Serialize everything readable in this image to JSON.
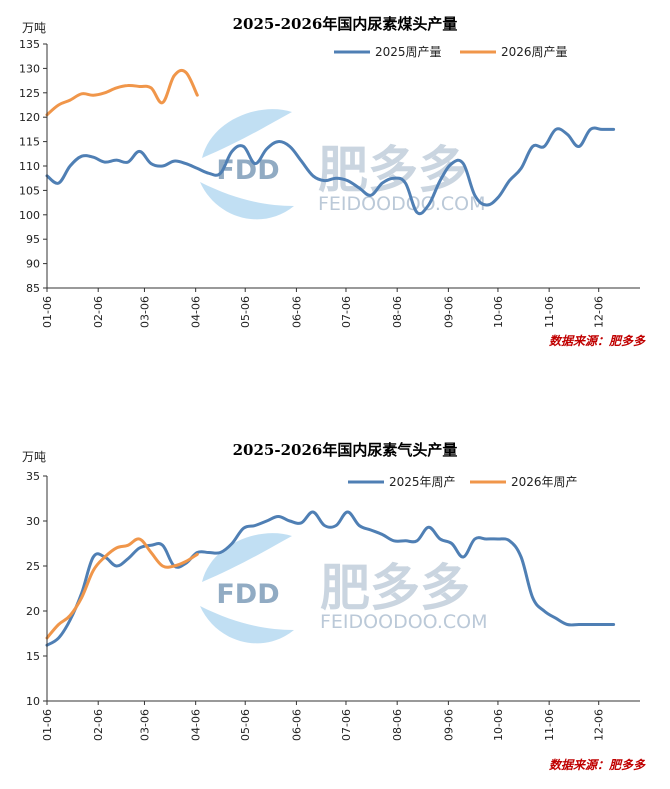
{
  "watermark": {
    "logo_text": "FDD",
    "brand_cn": "肥多多",
    "brand_en": "FEIDOODOO.COM",
    "colors": {
      "leaf": "#8ec5ea",
      "text": "#9fb3c8"
    }
  },
  "chart_data": [
    {
      "type": "line",
      "title": "2025-2026年国内尿素煤头产量",
      "unit": "万吨",
      "source": "数据来源：肥多多",
      "ylim": [
        85,
        135
      ],
      "yticks": [
        85,
        90,
        95,
        100,
        105,
        110,
        115,
        120,
        125,
        130,
        135
      ],
      "xlim": [
        0,
        359
      ],
      "xticks": [
        {
          "label": "01-06",
          "pos": 0
        },
        {
          "label": "02-06",
          "pos": 31
        },
        {
          "label": "03-06",
          "pos": 59
        },
        {
          "label": "04-06",
          "pos": 90
        },
        {
          "label": "05-06",
          "pos": 120
        },
        {
          "label": "06-06",
          "pos": 151
        },
        {
          "label": "07-06",
          "pos": 181
        },
        {
          "label": "08-06",
          "pos": 212
        },
        {
          "label": "09-06",
          "pos": 243
        },
        {
          "label": "10-06",
          "pos": 273
        },
        {
          "label": "11-06",
          "pos": 304
        },
        {
          "label": "12-06",
          "pos": 334
        }
      ],
      "legend_position": "top-right",
      "grid": false,
      "series": [
        {
          "name": "2025周产量",
          "color": "#4f7fb4",
          "points": [
            [
              0,
              108
            ],
            [
              7,
              106.5
            ],
            [
              14,
              110
            ],
            [
              21,
              112
            ],
            [
              28,
              111.8
            ],
            [
              35,
              110.8
            ],
            [
              42,
              111.2
            ],
            [
              49,
              110.8
            ],
            [
              56,
              113
            ],
            [
              63,
              110.5
            ],
            [
              70,
              110
            ],
            [
              77,
              111
            ],
            [
              84,
              110.5
            ],
            [
              91,
              109.5
            ],
            [
              98,
              108.5
            ],
            [
              105,
              108.5
            ],
            [
              112,
              113
            ],
            [
              119,
              114
            ],
            [
              126,
              110.5
            ],
            [
              133,
              113.5
            ],
            [
              140,
              115
            ],
            [
              147,
              114
            ],
            [
              154,
              111
            ],
            [
              161,
              108
            ],
            [
              168,
              107
            ],
            [
              175,
              107.5
            ],
            [
              182,
              107
            ],
            [
              189,
              105.5
            ],
            [
              196,
              104
            ],
            [
              203,
              106.5
            ],
            [
              210,
              107.5
            ],
            [
              217,
              106.5
            ],
            [
              224,
              100.5
            ],
            [
              231,
              102
            ],
            [
              238,
              107
            ],
            [
              245,
              110.5
            ],
            [
              252,
              110.5
            ],
            [
              259,
              104
            ],
            [
              266,
              102
            ],
            [
              273,
              103.5
            ],
            [
              280,
              107
            ],
            [
              287,
              109.5
            ],
            [
              294,
              114
            ],
            [
              301,
              114
            ],
            [
              308,
              117.5
            ],
            [
              315,
              116.5
            ],
            [
              322,
              114
            ],
            [
              329,
              117.5
            ],
            [
              336,
              117.5
            ],
            [
              343,
              117.5
            ]
          ]
        },
        {
          "name": "2026周产量",
          "color": "#f0964a",
          "points": [
            [
              0,
              120.5
            ],
            [
              7,
              122.5
            ],
            [
              14,
              123.5
            ],
            [
              21,
              124.8
            ],
            [
              28,
              124.5
            ],
            [
              35,
              125
            ],
            [
              42,
              126
            ],
            [
              49,
              126.5
            ],
            [
              56,
              126.3
            ],
            [
              63,
              126
            ],
            [
              70,
              123
            ],
            [
              77,
              128.5
            ],
            [
              84,
              129.2
            ],
            [
              91,
              124.5
            ]
          ]
        }
      ]
    },
    {
      "type": "line",
      "title": "2025-2026年国内尿素气头产量",
      "unit": "万吨",
      "source": "数据来源：肥多多",
      "ylim": [
        10,
        35
      ],
      "yticks": [
        10,
        15,
        20,
        25,
        30,
        35
      ],
      "xlim": [
        0,
        359
      ],
      "xticks": [
        {
          "label": "01-06",
          "pos": 0
        },
        {
          "label": "02-06",
          "pos": 31
        },
        {
          "label": "03-06",
          "pos": 59
        },
        {
          "label": "04-06",
          "pos": 90
        },
        {
          "label": "05-06",
          "pos": 120
        },
        {
          "label": "06-06",
          "pos": 151
        },
        {
          "label": "07-06",
          "pos": 181
        },
        {
          "label": "08-06",
          "pos": 212
        },
        {
          "label": "09-06",
          "pos": 243
        },
        {
          "label": "10-06",
          "pos": 273
        },
        {
          "label": "11-06",
          "pos": 304
        },
        {
          "label": "12-06",
          "pos": 334
        }
      ],
      "legend_position": "top-right",
      "grid": false,
      "series": [
        {
          "name": "2025年周产",
          "color": "#4f7fb4",
          "points": [
            [
              0,
              16.2
            ],
            [
              7,
              17
            ],
            [
              14,
              19
            ],
            [
              21,
              22
            ],
            [
              28,
              26
            ],
            [
              35,
              26
            ],
            [
              42,
              25
            ],
            [
              49,
              25.8
            ],
            [
              56,
              27
            ],
            [
              63,
              27.3
            ],
            [
              70,
              27.3
            ],
            [
              77,
              25
            ],
            [
              84,
              25.3
            ],
            [
              91,
              26.5
            ],
            [
              98,
              26.5
            ],
            [
              105,
              26.5
            ],
            [
              112,
              27.5
            ],
            [
              119,
              29.2
            ],
            [
              126,
              29.5
            ],
            [
              133,
              30
            ],
            [
              140,
              30.5
            ],
            [
              147,
              30
            ],
            [
              154,
              29.8
            ],
            [
              161,
              31
            ],
            [
              168,
              29.5
            ],
            [
              175,
              29.5
            ],
            [
              182,
              31
            ],
            [
              189,
              29.5
            ],
            [
              196,
              29
            ],
            [
              203,
              28.5
            ],
            [
              210,
              27.8
            ],
            [
              217,
              27.8
            ],
            [
              224,
              27.8
            ],
            [
              231,
              29.3
            ],
            [
              238,
              28
            ],
            [
              245,
              27.5
            ],
            [
              252,
              26
            ],
            [
              259,
              28
            ],
            [
              266,
              28
            ],
            [
              273,
              28
            ],
            [
              280,
              27.8
            ],
            [
              287,
              26
            ],
            [
              294,
              21.5
            ],
            [
              301,
              20
            ],
            [
              308,
              19.2
            ],
            [
              315,
              18.5
            ],
            [
              322,
              18.5
            ],
            [
              329,
              18.5
            ],
            [
              336,
              18.5
            ],
            [
              343,
              18.5
            ]
          ]
        },
        {
          "name": "2026年周产",
          "color": "#f0964a",
          "points": [
            [
              0,
              17
            ],
            [
              7,
              18.5
            ],
            [
              14,
              19.5
            ],
            [
              21,
              21.5
            ],
            [
              28,
              24.5
            ],
            [
              35,
              26
            ],
            [
              42,
              27
            ],
            [
              49,
              27.3
            ],
            [
              56,
              28
            ],
            [
              63,
              26.5
            ],
            [
              70,
              25
            ],
            [
              77,
              25
            ],
            [
              84,
              25.5
            ],
            [
              91,
              26.3
            ]
          ]
        }
      ]
    }
  ]
}
